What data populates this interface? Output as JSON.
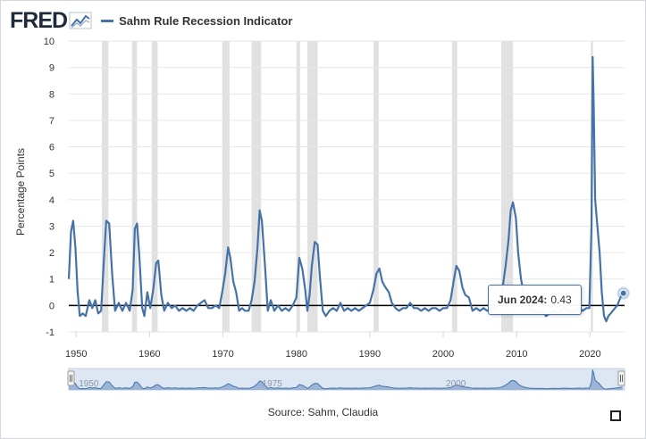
{
  "header": {
    "logo_text": "FRED",
    "logo_mark": "fred-graph-mark",
    "legend_label": "Sahm Rule Recession Indicator",
    "series_color": "#4572a7"
  },
  "tooltip": {
    "date": "Jun 2024:",
    "value": "0.43"
  },
  "source": {
    "label": "Source:",
    "value": "Sahm, Claudia"
  },
  "icons": {
    "fullscreen": "fullscreen-icon",
    "navigator_handle": "drag-handle-icon"
  },
  "chart_data": {
    "type": "line",
    "title": "Sahm Rule Recession Indicator",
    "ylabel": "Percentage Points",
    "xlabel": "",
    "xlim": [
      1949.0,
      2024.7
    ],
    "ylim": [
      -1,
      10
    ],
    "y_ticks": [
      -1,
      0,
      1,
      2,
      3,
      4,
      5,
      6,
      7,
      8,
      9,
      10
    ],
    "x_ticks": [
      1950,
      1960,
      1970,
      1980,
      1990,
      2000,
      2010,
      2020
    ],
    "navigator_ticks": [
      1950,
      1975,
      2000
    ],
    "grid": "horizontal",
    "recession_shading": [
      [
        1953.5,
        1954.4
      ],
      [
        1957.6,
        1958.3
      ],
      [
        1960.3,
        1961.1
      ],
      [
        1969.9,
        1970.9
      ],
      [
        1973.9,
        1975.2
      ],
      [
        1980.0,
        1980.5
      ],
      [
        1981.5,
        1982.9
      ],
      [
        1990.5,
        1991.2
      ],
      [
        2001.2,
        2001.9
      ],
      [
        2007.9,
        2009.5
      ],
      [
        2020.1,
        2020.4
      ]
    ],
    "series": [
      {
        "name": "Sahm Rule Recession Indicator",
        "color": "#4572a7",
        "points": [
          [
            1949.0,
            1.0
          ],
          [
            1949.3,
            2.8
          ],
          [
            1949.6,
            3.2
          ],
          [
            1949.9,
            2.2
          ],
          [
            1950.2,
            0.5
          ],
          [
            1950.5,
            -0.4
          ],
          [
            1950.9,
            -0.3
          ],
          [
            1951.3,
            -0.4
          ],
          [
            1951.8,
            0.2
          ],
          [
            1952.2,
            -0.1
          ],
          [
            1952.6,
            0.2
          ],
          [
            1953.0,
            -0.3
          ],
          [
            1953.4,
            -0.2
          ],
          [
            1953.8,
            1.8
          ],
          [
            1954.1,
            3.2
          ],
          [
            1954.5,
            3.1
          ],
          [
            1954.9,
            1.2
          ],
          [
            1955.3,
            -0.2
          ],
          [
            1955.8,
            0.1
          ],
          [
            1956.3,
            -0.2
          ],
          [
            1956.8,
            0.1
          ],
          [
            1957.3,
            -0.2
          ],
          [
            1957.7,
            0.6
          ],
          [
            1958.0,
            2.9
          ],
          [
            1958.3,
            3.1
          ],
          [
            1958.6,
            1.9
          ],
          [
            1959.0,
            -0.1
          ],
          [
            1959.3,
            -0.4
          ],
          [
            1959.7,
            0.5
          ],
          [
            1960.1,
            -0.1
          ],
          [
            1960.5,
            0.6
          ],
          [
            1960.9,
            1.6
          ],
          [
            1961.2,
            1.7
          ],
          [
            1961.6,
            0.4
          ],
          [
            1962.0,
            -0.2
          ],
          [
            1962.5,
            0.1
          ],
          [
            1963.0,
            -0.1
          ],
          [
            1963.5,
            0.0
          ],
          [
            1964.0,
            -0.2
          ],
          [
            1964.5,
            -0.1
          ],
          [
            1965.0,
            -0.2
          ],
          [
            1965.5,
            -0.1
          ],
          [
            1966.0,
            -0.2
          ],
          [
            1966.5,
            0.0
          ],
          [
            1967.0,
            0.1
          ],
          [
            1967.5,
            0.2
          ],
          [
            1968.0,
            -0.1
          ],
          [
            1968.5,
            -0.1
          ],
          [
            1969.0,
            0.0
          ],
          [
            1969.5,
            -0.1
          ],
          [
            1969.9,
            0.5
          ],
          [
            1970.3,
            1.2
          ],
          [
            1970.7,
            2.2
          ],
          [
            1971.0,
            1.8
          ],
          [
            1971.4,
            0.9
          ],
          [
            1971.8,
            0.5
          ],
          [
            1972.2,
            -0.2
          ],
          [
            1972.6,
            -0.1
          ],
          [
            1973.0,
            -0.2
          ],
          [
            1973.5,
            -0.2
          ],
          [
            1973.9,
            0.2
          ],
          [
            1974.3,
            0.9
          ],
          [
            1974.7,
            2.2
          ],
          [
            1975.0,
            3.6
          ],
          [
            1975.3,
            3.2
          ],
          [
            1975.7,
            1.6
          ],
          [
            1976.1,
            -0.2
          ],
          [
            1976.5,
            0.2
          ],
          [
            1977.0,
            -0.2
          ],
          [
            1977.5,
            0.0
          ],
          [
            1978.0,
            -0.2
          ],
          [
            1978.5,
            -0.1
          ],
          [
            1979.0,
            -0.2
          ],
          [
            1979.5,
            0.0
          ],
          [
            1980.0,
            0.3
          ],
          [
            1980.4,
            1.8
          ],
          [
            1980.8,
            1.4
          ],
          [
            1981.2,
            0.6
          ],
          [
            1981.5,
            -0.2
          ],
          [
            1981.8,
            0.4
          ],
          [
            1982.1,
            1.5
          ],
          [
            1982.5,
            2.4
          ],
          [
            1982.9,
            2.3
          ],
          [
            1983.2,
            1.1
          ],
          [
            1983.6,
            -0.2
          ],
          [
            1984.0,
            -0.4
          ],
          [
            1984.5,
            -0.2
          ],
          [
            1985.0,
            -0.1
          ],
          [
            1985.5,
            -0.2
          ],
          [
            1986.0,
            0.1
          ],
          [
            1986.5,
            -0.2
          ],
          [
            1987.0,
            -0.1
          ],
          [
            1987.5,
            -0.2
          ],
          [
            1988.0,
            -0.1
          ],
          [
            1988.5,
            -0.2
          ],
          [
            1989.0,
            -0.1
          ],
          [
            1989.5,
            0.0
          ],
          [
            1990.0,
            0.1
          ],
          [
            1990.5,
            0.6
          ],
          [
            1990.9,
            1.2
          ],
          [
            1991.3,
            1.4
          ],
          [
            1991.7,
            0.9
          ],
          [
            1992.1,
            0.7
          ],
          [
            1992.6,
            0.5
          ],
          [
            1993.0,
            0.1
          ],
          [
            1993.5,
            -0.1
          ],
          [
            1994.0,
            -0.2
          ],
          [
            1994.5,
            -0.1
          ],
          [
            1995.0,
            -0.1
          ],
          [
            1995.5,
            0.1
          ],
          [
            1996.0,
            -0.1
          ],
          [
            1996.5,
            -0.1
          ],
          [
            1997.0,
            -0.2
          ],
          [
            1997.5,
            -0.1
          ],
          [
            1998.0,
            -0.2
          ],
          [
            1998.5,
            -0.1
          ],
          [
            1999.0,
            -0.1
          ],
          [
            1999.5,
            -0.2
          ],
          [
            2000.0,
            -0.1
          ],
          [
            2000.5,
            -0.1
          ],
          [
            2001.0,
            0.2
          ],
          [
            2001.4,
            0.9
          ],
          [
            2001.8,
            1.5
          ],
          [
            2002.2,
            1.3
          ],
          [
            2002.6,
            0.7
          ],
          [
            2003.0,
            0.4
          ],
          [
            2003.5,
            0.3
          ],
          [
            2004.0,
            -0.2
          ],
          [
            2004.5,
            -0.1
          ],
          [
            2005.0,
            -0.2
          ],
          [
            2005.5,
            -0.1
          ],
          [
            2006.0,
            -0.2
          ],
          [
            2006.5,
            -0.1
          ],
          [
            2007.0,
            -0.1
          ],
          [
            2007.5,
            0.0
          ],
          [
            2008.0,
            0.5
          ],
          [
            2008.5,
            1.5
          ],
          [
            2008.9,
            2.5
          ],
          [
            2009.2,
            3.6
          ],
          [
            2009.5,
            3.9
          ],
          [
            2009.9,
            3.3
          ],
          [
            2010.2,
            2.0
          ],
          [
            2010.6,
            1.0
          ],
          [
            2011.0,
            0.4
          ],
          [
            2011.5,
            0.0
          ],
          [
            2012.0,
            -0.2
          ],
          [
            2012.5,
            -0.2
          ],
          [
            2013.0,
            -0.3
          ],
          [
            2013.5,
            -0.2
          ],
          [
            2014.0,
            -0.4
          ],
          [
            2014.5,
            -0.3
          ],
          [
            2015.0,
            -0.2
          ],
          [
            2015.5,
            -0.3
          ],
          [
            2016.0,
            -0.2
          ],
          [
            2016.5,
            -0.1
          ],
          [
            2017.0,
            -0.2
          ],
          [
            2017.5,
            -0.2
          ],
          [
            2018.0,
            -0.2
          ],
          [
            2018.5,
            -0.1
          ],
          [
            2019.0,
            -0.2
          ],
          [
            2019.5,
            -0.1
          ],
          [
            2019.9,
            -0.1
          ],
          [
            2020.2,
            3.0
          ],
          [
            2020.35,
            9.4
          ],
          [
            2020.5,
            7.5
          ],
          [
            2020.7,
            4.0
          ],
          [
            2021.0,
            3.0
          ],
          [
            2021.3,
            2.0
          ],
          [
            2021.6,
            0.5
          ],
          [
            2021.9,
            -0.4
          ],
          [
            2022.2,
            -0.6
          ],
          [
            2022.5,
            -0.4
          ],
          [
            2022.8,
            -0.3
          ],
          [
            2023.1,
            -0.2
          ],
          [
            2023.4,
            -0.1
          ],
          [
            2023.7,
            0.0
          ],
          [
            2024.0,
            0.2
          ],
          [
            2024.25,
            0.37
          ],
          [
            2024.42,
            0.43
          ]
        ]
      }
    ]
  }
}
